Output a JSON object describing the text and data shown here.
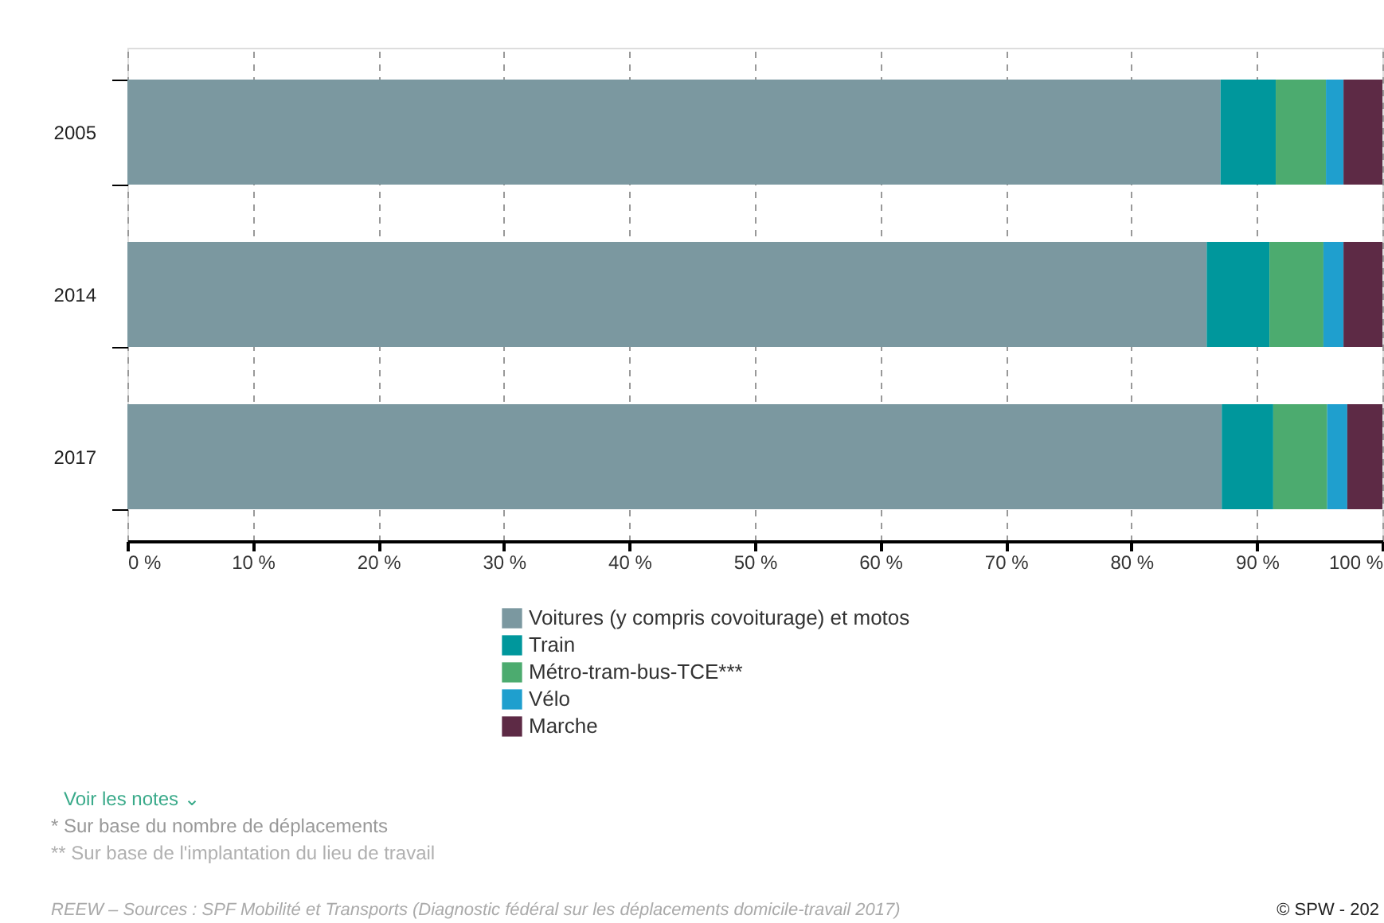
{
  "chart_data": {
    "type": "bar",
    "orientation": "horizontal",
    "stacked": true,
    "categories": [
      "2005",
      "2014",
      "2017"
    ],
    "series": [
      {
        "name": "Voitures (y compris covoiturage) et motos",
        "color": "#7b98a0",
        "values": [
          87.1,
          86.0,
          87.2
        ]
      },
      {
        "name": "Train",
        "color": "#00979c",
        "values": [
          4.4,
          5.0,
          4.1
        ]
      },
      {
        "name": "Métro-tram-bus-TCE***",
        "color": "#4cab6f",
        "values": [
          4.0,
          4.3,
          4.3
        ]
      },
      {
        "name": "Vélo",
        "color": "#1f9fce",
        "values": [
          1.4,
          1.6,
          1.6
        ]
      },
      {
        "name": "Marche",
        "color": "#5d2a45",
        "values": [
          3.1,
          3.1,
          2.8
        ]
      }
    ],
    "xlim": [
      0,
      100
    ],
    "xticks": [
      {
        "value": 0,
        "label": "0 %"
      },
      {
        "value": 10,
        "label": "10 %"
      },
      {
        "value": 20,
        "label": "20 %"
      },
      {
        "value": 30,
        "label": "30 %"
      },
      {
        "value": 40,
        "label": "40 %"
      },
      {
        "value": 50,
        "label": "50 %"
      },
      {
        "value": 60,
        "label": "60 %"
      },
      {
        "value": 70,
        "label": "70 %"
      },
      {
        "value": 80,
        "label": "80 %"
      },
      {
        "value": 90,
        "label": "90 %"
      },
      {
        "value": 100,
        "label": "100 %"
      }
    ],
    "grid": "x",
    "legend": "bottom",
    "annotations": [
      "Voir les notes ⌄",
      "* Sur base du nombre de déplacements",
      "** Sur base de l'implantation du lieu de travail",
      "REEW – Sources : SPF Mobilité et Transports (Diagnostic fédéral sur les déplacements domicile-travail 2017)",
      "© SPW - 202"
    ]
  }
}
